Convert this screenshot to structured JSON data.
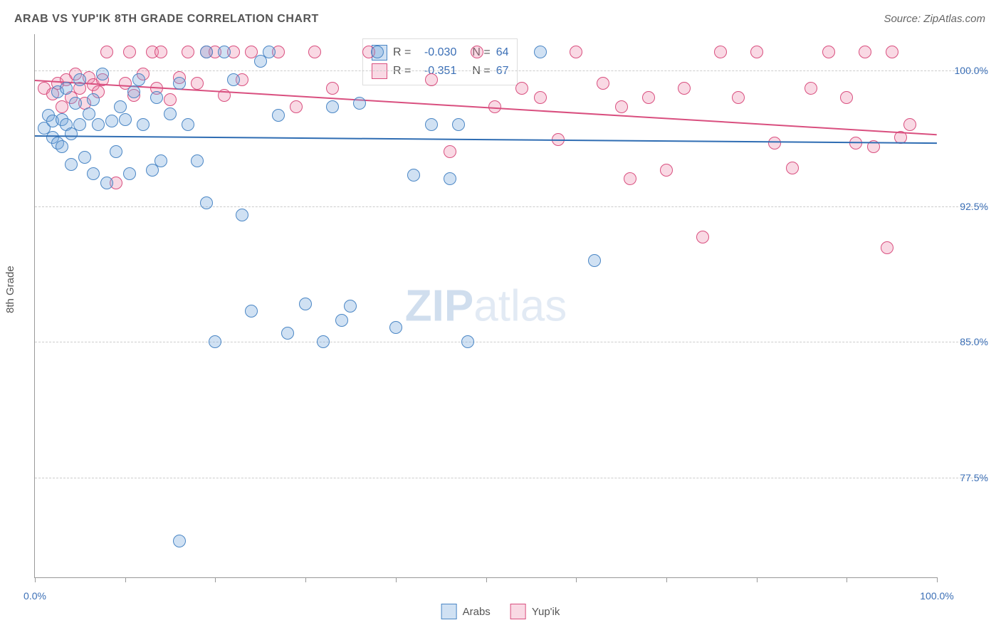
{
  "title": "ARAB VS YUP'IK 8TH GRADE CORRELATION CHART",
  "source_label": "Source: ZipAtlas.com",
  "ylabel": "8th Grade",
  "watermark_bold": "ZIP",
  "watermark_light": "atlas",
  "chart": {
    "type": "scatter-correlation",
    "xlim": [
      0,
      100
    ],
    "ylim": [
      72,
      102
    ],
    "y_gridlines": [
      77.5,
      85.0,
      92.5,
      100.0
    ],
    "y_tick_labels": [
      "77.5%",
      "85.0%",
      "92.5%",
      "100.0%"
    ],
    "x_ticks": [
      0,
      10,
      20,
      30,
      40,
      50,
      60,
      70,
      80,
      90,
      100
    ],
    "x_tick_labels": {
      "0": "0.0%",
      "100": "100.0%"
    },
    "marker_radius": 9,
    "marker_border_width": 1.2,
    "background": "#ffffff",
    "grid_color": "#cccccc"
  },
  "series": {
    "arabs": {
      "label": "Arabs",
      "color_fill": "rgba(120,170,220,0.35)",
      "color_stroke": "#4a86c5",
      "line_color": "#2f6db3",
      "R": "-0.030",
      "N": "64",
      "trend": {
        "x1": 0,
        "y1": 96.4,
        "x2": 100,
        "y2": 96.0
      },
      "points": [
        [
          1,
          96.8
        ],
        [
          1.5,
          97.5
        ],
        [
          2,
          96.3
        ],
        [
          2,
          97.2
        ],
        [
          2.5,
          98.8
        ],
        [
          2.5,
          96.0
        ],
        [
          3,
          97.3
        ],
        [
          3,
          95.8
        ],
        [
          3.5,
          99.0
        ],
        [
          3.5,
          97.0
        ],
        [
          4,
          96.5
        ],
        [
          4,
          94.8
        ],
        [
          4.5,
          98.2
        ],
        [
          5,
          97.0
        ],
        [
          5,
          99.5
        ],
        [
          5.5,
          95.2
        ],
        [
          6,
          97.6
        ],
        [
          6.5,
          98.4
        ],
        [
          6.5,
          94.3
        ],
        [
          7,
          97.0
        ],
        [
          7.5,
          99.8
        ],
        [
          8,
          93.8
        ],
        [
          8.5,
          97.2
        ],
        [
          9,
          95.5
        ],
        [
          9.5,
          98.0
        ],
        [
          10,
          97.3
        ],
        [
          10.5,
          94.3
        ],
        [
          11,
          98.8
        ],
        [
          11.5,
          99.5
        ],
        [
          12,
          97.0
        ],
        [
          13,
          94.5
        ],
        [
          13.5,
          98.5
        ],
        [
          14,
          95.0
        ],
        [
          15,
          97.6
        ],
        [
          16,
          99.3
        ],
        [
          17,
          97.0
        ],
        [
          18,
          95.0
        ],
        [
          19,
          92.7
        ],
        [
          19,
          101.0
        ],
        [
          20,
          85.0
        ],
        [
          21,
          101.0
        ],
        [
          22,
          99.5
        ],
        [
          23,
          92.0
        ],
        [
          24,
          86.7
        ],
        [
          26,
          101.0
        ],
        [
          28,
          85.5
        ],
        [
          30,
          87.1
        ],
        [
          32,
          85.0
        ],
        [
          33,
          98.0
        ],
        [
          34,
          86.2
        ],
        [
          35,
          87.0
        ],
        [
          36,
          98.2
        ],
        [
          38,
          101.0
        ],
        [
          40,
          85.8
        ],
        [
          42,
          94.2
        ],
        [
          44,
          97.0
        ],
        [
          46,
          94.0
        ],
        [
          47,
          97.0
        ],
        [
          48,
          85.0
        ],
        [
          56,
          101.0
        ],
        [
          62,
          89.5
        ],
        [
          16,
          74.0
        ],
        [
          25,
          100.5
        ],
        [
          27,
          97.5
        ]
      ]
    },
    "yupik": {
      "label": "Yup'ik",
      "color_fill": "rgba(235,130,165,0.30)",
      "color_stroke": "#d94f7f",
      "line_color": "#d94f7f",
      "R": "-0.351",
      "N": "67",
      "trend": {
        "x1": 0,
        "y1": 99.5,
        "x2": 100,
        "y2": 96.5
      },
      "points": [
        [
          1,
          99.0
        ],
        [
          2,
          98.7
        ],
        [
          2.5,
          99.3
        ],
        [
          3,
          98.0
        ],
        [
          3.5,
          99.5
        ],
        [
          4,
          98.5
        ],
        [
          4.5,
          99.8
        ],
        [
          5,
          99.0
        ],
        [
          5.5,
          98.2
        ],
        [
          6,
          99.6
        ],
        [
          6.5,
          99.2
        ],
        [
          7,
          98.8
        ],
        [
          7.5,
          99.5
        ],
        [
          8,
          101.0
        ],
        [
          9,
          93.8
        ],
        [
          10,
          99.3
        ],
        [
          10.5,
          101.0
        ],
        [
          11,
          98.6
        ],
        [
          12,
          99.8
        ],
        [
          13,
          101.0
        ],
        [
          13.5,
          99.0
        ],
        [
          14,
          101.0
        ],
        [
          15,
          98.4
        ],
        [
          16,
          99.6
        ],
        [
          17,
          101.0
        ],
        [
          18,
          99.3
        ],
        [
          19,
          101.0
        ],
        [
          20,
          101.0
        ],
        [
          21,
          98.6
        ],
        [
          22,
          101.0
        ],
        [
          23,
          99.5
        ],
        [
          24,
          101.0
        ],
        [
          27,
          101.0
        ],
        [
          29,
          98.0
        ],
        [
          31,
          101.0
        ],
        [
          33,
          99.0
        ],
        [
          37,
          101.0
        ],
        [
          44,
          99.5
        ],
        [
          46,
          95.5
        ],
        [
          49,
          101.0
        ],
        [
          51,
          98.0
        ],
        [
          54,
          99.0
        ],
        [
          56,
          98.5
        ],
        [
          58,
          96.2
        ],
        [
          60,
          101.0
        ],
        [
          63,
          99.3
        ],
        [
          65,
          98.0
        ],
        [
          66,
          94.0
        ],
        [
          68,
          98.5
        ],
        [
          70,
          94.5
        ],
        [
          72,
          99.0
        ],
        [
          74,
          90.8
        ],
        [
          76,
          101.0
        ],
        [
          78,
          98.5
        ],
        [
          80,
          101.0
        ],
        [
          82,
          96.0
        ],
        [
          84,
          94.6
        ],
        [
          86,
          99.0
        ],
        [
          88,
          101.0
        ],
        [
          90,
          98.5
        ],
        [
          91,
          96.0
        ],
        [
          92,
          101.0
        ],
        [
          93,
          95.8
        ],
        [
          94.5,
          90.2
        ],
        [
          95,
          101.0
        ],
        [
          96,
          96.3
        ],
        [
          97,
          97.0
        ]
      ]
    }
  },
  "legend_top": {
    "rows": [
      {
        "swatch_fill": "rgba(120,170,220,0.35)",
        "swatch_stroke": "#4a86c5",
        "r_label": "R = ",
        "r_val": "-0.030",
        "n_label": "N = ",
        "n_val": "64"
      },
      {
        "swatch_fill": "rgba(235,130,165,0.30)",
        "swatch_stroke": "#d94f7f",
        "r_label": "R = ",
        "r_val": "-0.351",
        "n_label": "N = ",
        "n_val": "67"
      }
    ]
  },
  "legend_bottom": [
    {
      "fill": "rgba(120,170,220,0.35)",
      "stroke": "#4a86c5",
      "label": "Arabs"
    },
    {
      "fill": "rgba(235,130,165,0.30)",
      "stroke": "#d94f7f",
      "label": "Yup'ik"
    }
  ]
}
